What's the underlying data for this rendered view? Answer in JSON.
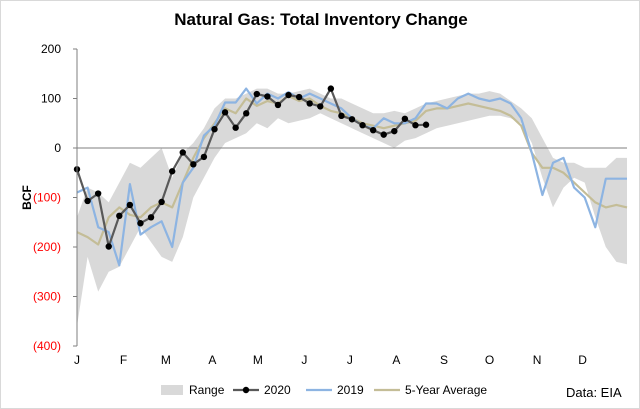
{
  "chart_data": {
    "type": "line",
    "title": "Natural Gas: Total Inventory Change",
    "xlabel": "",
    "ylabel": "BCF",
    "ylim": [
      -400,
      200
    ],
    "yticks": [
      {
        "value": 200,
        "label": "200",
        "color": "#000000"
      },
      {
        "value": 100,
        "label": "100",
        "color": "#000000"
      },
      {
        "value": 0,
        "label": "0",
        "color": "#000000"
      },
      {
        "value": -100,
        "label": "(100)",
        "color": "#ff0000"
      },
      {
        "value": -200,
        "label": "(200)",
        "color": "#ff0000"
      },
      {
        "value": -300,
        "label": "(300)",
        "color": "#ff0000"
      },
      {
        "value": -400,
        "label": "(400)",
        "color": "#ff0000"
      }
    ],
    "xlim": [
      1,
      53
    ],
    "month_labels": [
      {
        "label": "J",
        "week": 1
      },
      {
        "label": "F",
        "week": 5.4
      },
      {
        "label": "M",
        "week": 9.4
      },
      {
        "label": "A",
        "week": 13.8
      },
      {
        "label": "M",
        "week": 18.1
      },
      {
        "label": "J",
        "week": 22.5
      },
      {
        "label": "J",
        "week": 26.8
      },
      {
        "label": "A",
        "week": 31.2
      },
      {
        "label": "S",
        "week": 35.7
      },
      {
        "label": "O",
        "week": 40.0
      },
      {
        "label": "N",
        "week": 44.5
      },
      {
        "label": "D",
        "week": 48.8
      }
    ],
    "legend": [
      "Range",
      "2020",
      "2019",
      "5-Year Average"
    ],
    "legend_position": "bottom",
    "grid": false,
    "source": "Data: EIA",
    "colors": {
      "range": "#d9d9d9",
      "y2020": "#595959",
      "y2020_marker": "#000000",
      "y2019": "#8db4e2",
      "avg": "#c4bd97",
      "negative_label": "#ff0000"
    },
    "series": [
      {
        "name": "Range",
        "kind": "band",
        "x": [
          1,
          2,
          3,
          4,
          5,
          6,
          7,
          8,
          9,
          10,
          11,
          12,
          13,
          14,
          15,
          16,
          17,
          18,
          19,
          20,
          21,
          22,
          23,
          24,
          25,
          26,
          27,
          28,
          29,
          30,
          31,
          32,
          33,
          34,
          35,
          36,
          37,
          38,
          39,
          40,
          41,
          42,
          43,
          44,
          45,
          46,
          47,
          48,
          49,
          50,
          51,
          52,
          53
        ],
        "low": [
          -360,
          -220,
          -290,
          -250,
          -240,
          -200,
          -160,
          -190,
          -220,
          -230,
          -180,
          -100,
          -60,
          -20,
          10,
          20,
          30,
          50,
          40,
          60,
          50,
          55,
          60,
          70,
          60,
          50,
          40,
          30,
          20,
          10,
          0,
          15,
          20,
          30,
          40,
          45,
          50,
          55,
          60,
          65,
          65,
          60,
          50,
          10,
          -60,
          -120,
          -80,
          -60,
          -70,
          -140,
          -200,
          -230,
          -235
        ],
        "high": [
          -140,
          -80,
          -90,
          -110,
          -70,
          -30,
          -40,
          -20,
          0,
          -60,
          -10,
          10,
          40,
          80,
          100,
          100,
          110,
          120,
          120,
          110,
          110,
          115,
          120,
          110,
          100,
          100,
          90,
          80,
          70,
          70,
          75,
          70,
          80,
          90,
          95,
          100,
          105,
          110,
          110,
          115,
          110,
          95,
          80,
          60,
          20,
          -20,
          -30,
          -30,
          -40,
          -40,
          -40,
          -20,
          -20
        ]
      },
      {
        "name": "2020",
        "kind": "line-markers",
        "x": [
          1,
          2,
          3,
          4,
          5,
          6,
          7,
          8,
          9,
          10,
          11,
          12,
          13,
          14,
          15,
          16,
          17,
          18,
          19,
          20,
          21,
          22,
          23,
          24,
          25,
          26,
          27,
          28,
          29,
          30,
          31,
          32,
          33,
          34,
          35
        ],
        "y": [
          -43,
          -107,
          -92,
          -199,
          -137,
          -115,
          -152,
          -140,
          -109,
          -47,
          -9,
          -33,
          -18,
          38,
          72,
          41,
          70,
          109,
          104,
          87,
          107,
          103,
          90,
          84,
          120,
          65,
          58,
          46,
          36,
          27,
          34,
          59,
          46,
          47,
          null
        ]
      },
      {
        "name": "2019",
        "kind": "line",
        "x": [
          1,
          2,
          3,
          4,
          5,
          6,
          7,
          8,
          9,
          10,
          11,
          12,
          13,
          14,
          15,
          16,
          17,
          18,
          19,
          20,
          21,
          22,
          23,
          24,
          25,
          26,
          27,
          28,
          29,
          30,
          31,
          32,
          33,
          34,
          35,
          36,
          37,
          38,
          39,
          40,
          41,
          42,
          43,
          44,
          45,
          46,
          47,
          48,
          49,
          50,
          51,
          52,
          53
        ],
        "y": [
          -90,
          -80,
          -160,
          -170,
          -237,
          -73,
          -175,
          -160,
          -148,
          -200,
          -70,
          -40,
          25,
          45,
          92,
          92,
          120,
          90,
          110,
          100,
          113,
          100,
          110,
          100,
          90,
          80,
          60,
          45,
          40,
          60,
          50,
          50,
          60,
          90,
          90,
          80,
          100,
          110,
          100,
          95,
          100,
          90,
          60,
          -10,
          -95,
          -30,
          -20,
          -80,
          -100,
          -160,
          -62,
          -62,
          -62
        ]
      },
      {
        "name": "5-Year Average",
        "kind": "line",
        "x": [
          1,
          2,
          3,
          4,
          5,
          6,
          7,
          8,
          9,
          10,
          11,
          12,
          13,
          14,
          15,
          16,
          17,
          18,
          19,
          20,
          21,
          22,
          23,
          24,
          25,
          26,
          27,
          28,
          29,
          30,
          31,
          32,
          33,
          34,
          35,
          36,
          37,
          38,
          39,
          40,
          41,
          42,
          43,
          44,
          45,
          46,
          47,
          48,
          49,
          50,
          51,
          52,
          53
        ],
        "y": [
          -170,
          -180,
          -195,
          -140,
          -120,
          -135,
          -140,
          -120,
          -110,
          -120,
          -70,
          -20,
          20,
          50,
          80,
          70,
          100,
          85,
          95,
          90,
          105,
          95,
          100,
          85,
          75,
          70,
          60,
          50,
          45,
          40,
          45,
          50,
          55,
          75,
          80,
          80,
          85,
          90,
          85,
          80,
          75,
          65,
          45,
          -10,
          -40,
          -40,
          -50,
          -70,
          -90,
          -110,
          -120,
          -115,
          -120
        ]
      }
    ]
  }
}
